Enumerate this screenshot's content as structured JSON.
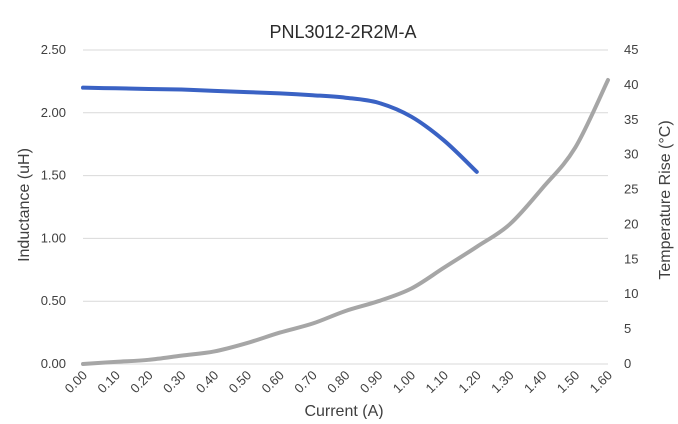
{
  "chart_data": {
    "type": "line",
    "title": "PNL3012-2R2M-A",
    "xlabel": "Current (A)",
    "ylabel_left": "Inductance (uH)",
    "ylabel_right": "Temperature Rise (°C)",
    "x_ticks": [
      "0.00",
      "0.10",
      "0.20",
      "0.30",
      "0.40",
      "0.50",
      "0.60",
      "0.70",
      "0.80",
      "0.90",
      "1.00",
      "1.10",
      "1.20",
      "1.30",
      "1.40",
      "1.50",
      "1.60"
    ],
    "y_left_ticks": [
      "0.00",
      "0.50",
      "1.00",
      "1.50",
      "2.00",
      "2.50"
    ],
    "y_right_ticks": [
      "0",
      "5",
      "10",
      "15",
      "20",
      "25",
      "30",
      "35",
      "40",
      "45"
    ],
    "ylim_left": [
      0,
      2.5
    ],
    "ylim_right": [
      0,
      45
    ],
    "xlim": [
      0,
      1.6
    ],
    "grid": "horizontal",
    "series": [
      {
        "axis": "left",
        "color": "#3a62c4",
        "points": [
          [
            0.0,
            2.2
          ],
          [
            0.1,
            2.195
          ],
          [
            0.2,
            2.19
          ],
          [
            0.3,
            2.185
          ],
          [
            0.4,
            2.175
          ],
          [
            0.5,
            2.165
          ],
          [
            0.6,
            2.155
          ],
          [
            0.7,
            2.14
          ],
          [
            0.8,
            2.12
          ],
          [
            0.9,
            2.08
          ],
          [
            1.0,
            1.97
          ],
          [
            1.1,
            1.78
          ],
          [
            1.2,
            1.53
          ]
        ]
      },
      {
        "axis": "right",
        "color": "#a6a6a6",
        "points": [
          [
            0.0,
            0.0
          ],
          [
            0.1,
            0.3
          ],
          [
            0.2,
            0.6
          ],
          [
            0.3,
            1.2
          ],
          [
            0.4,
            1.8
          ],
          [
            0.5,
            3.0
          ],
          [
            0.6,
            4.5
          ],
          [
            0.7,
            5.8
          ],
          [
            0.8,
            7.6
          ],
          [
            0.9,
            9.0
          ],
          [
            1.0,
            10.8
          ],
          [
            1.1,
            13.8
          ],
          [
            1.2,
            16.8
          ],
          [
            1.3,
            20.0
          ],
          [
            1.4,
            25.2
          ],
          [
            1.5,
            31.0
          ],
          [
            1.6,
            40.7
          ]
        ]
      }
    ]
  }
}
